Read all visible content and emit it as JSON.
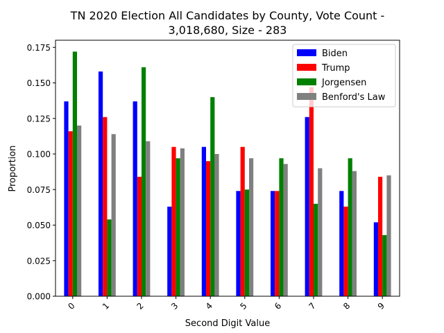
{
  "chart_data": {
    "type": "bar",
    "title_lines": [
      "TN 2020 Election All Candidates by County, Vote Count -",
      "3,018,680, Size - 283"
    ],
    "xlabel": "Second Digit Value",
    "ylabel": "Proportion",
    "categories": [
      "0",
      "1",
      "2",
      "3",
      "4",
      "5",
      "6",
      "7",
      "8",
      "9"
    ],
    "ylim": [
      0,
      0.18
    ],
    "yticks": [
      0.0,
      0.025,
      0.05,
      0.075,
      0.1,
      0.125,
      0.15,
      0.175
    ],
    "ytick_labels": [
      "0.000",
      "0.025",
      "0.050",
      "0.075",
      "0.100",
      "0.125",
      "0.150",
      "0.175"
    ],
    "grid": false,
    "legend_position": "top-right",
    "series": [
      {
        "name": "Biden",
        "color": "#0000ff",
        "values": [
          0.137,
          0.158,
          0.137,
          0.063,
          0.105,
          0.074,
          0.074,
          0.126,
          0.074,
          0.052
        ]
      },
      {
        "name": "Trump",
        "color": "#ff0000",
        "values": [
          0.116,
          0.126,
          0.084,
          0.105,
          0.095,
          0.105,
          0.074,
          0.147,
          0.063,
          0.084
        ]
      },
      {
        "name": "Jorgensen",
        "color": "#008000",
        "values": [
          0.172,
          0.054,
          0.161,
          0.097,
          0.14,
          0.075,
          0.097,
          0.065,
          0.097,
          0.043
        ]
      },
      {
        "name": "Benford's Law",
        "color": "#808080",
        "values": [
          0.12,
          0.114,
          0.109,
          0.104,
          0.1,
          0.097,
          0.093,
          0.09,
          0.088,
          0.085
        ]
      }
    ]
  }
}
